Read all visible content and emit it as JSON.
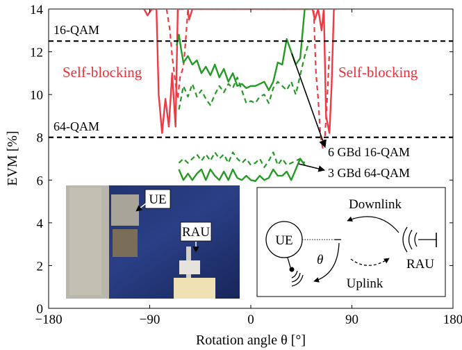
{
  "colors": {
    "red": "#ee3a44",
    "green": "#239a23",
    "threshold": "#000000"
  },
  "chart_data": {
    "type": "line",
    "xlabel": "Rotation angle θ [°]",
    "ylabel": "EVM [%]",
    "xlim": [
      -180,
      180
    ],
    "ylim": [
      0,
      14
    ],
    "xticks": [
      -180,
      -90,
      0,
      90,
      180
    ],
    "yticks": [
      0,
      2,
      4,
      6,
      8,
      10,
      12,
      14
    ],
    "xtick_labels": [
      "−180",
      "−90",
      "0",
      "90",
      "180"
    ],
    "grid": false,
    "thresholds": [
      {
        "label": "16-QAM",
        "y": 12.5
      },
      {
        "label": "64-QAM",
        "y": 8
      }
    ],
    "series": [
      {
        "name": "6 GBd 16-QAM",
        "color": "#ee3a44",
        "style": "solid",
        "x": [
          -95,
          -92,
          -88,
          -84,
          -82,
          -79,
          -76,
          -73,
          -70,
          -67,
          -65,
          -60,
          -57,
          -55,
          -52,
          55,
          57,
          60,
          63,
          65,
          67,
          70,
          72,
          74,
          76
        ],
        "y": [
          14,
          13.7,
          14,
          14,
          10,
          8.2,
          9.8,
          8.5,
          11.0,
          8.5,
          14,
          14,
          14.5,
          13.5,
          14,
          14,
          13.5,
          14,
          13,
          14,
          9,
          8.2,
          10.5,
          14,
          14
        ]
      },
      {
        "name": "3 GBd 64-QAM",
        "color": "#ee3a44",
        "style": "dashed",
        "x": [
          -75,
          -72,
          -70,
          -67,
          -65,
          -63,
          -60,
          -58,
          -56,
          56,
          58,
          60,
          62,
          64,
          66,
          68,
          70
        ],
        "y": [
          14,
          13,
          11.8,
          10.5,
          9.8,
          10.8,
          11.3,
          12.5,
          14,
          14,
          11,
          9.8,
          8.1,
          7.5,
          8.0,
          9.8,
          12
        ]
      },
      {
        "name": "6 GBd 16-QAM",
        "color": "#239a23",
        "style": "solid",
        "x": [
          -66,
          -64,
          -62,
          -60,
          -56,
          -52,
          -48,
          -44,
          -40,
          -36,
          -32,
          -28,
          -24,
          -20,
          -16,
          -12,
          -8,
          -4,
          0,
          4,
          8,
          12,
          16,
          20,
          24,
          28,
          32,
          36,
          40,
          44,
          48,
          52
        ],
        "y": [
          12.3,
          12.8,
          12.1,
          11.5,
          11.8,
          11.4,
          11.6,
          11.0,
          11.3,
          10.9,
          11.4,
          10.8,
          11.2,
          10.6,
          11.0,
          10.4,
          10.5,
          10.3,
          10.4,
          10.4,
          10.5,
          10.6,
          10.2,
          10.6,
          11.5,
          11.4,
          12.6,
          12.0,
          11.4,
          11.7,
          14,
          14
        ]
      },
      {
        "name": "3 GBd 64-QAM",
        "color": "#239a23",
        "style": "dashed",
        "x": [
          -64,
          -60,
          -56,
          -52,
          -48,
          -44,
          -40,
          -36,
          -32,
          -28,
          -24,
          -20,
          -16,
          -12,
          -8,
          -4,
          0,
          4,
          8,
          12,
          16,
          20,
          24,
          28,
          32,
          36,
          40,
          44,
          48,
          52
        ],
        "y": [
          9.3,
          10.4,
          9.9,
          10.5,
          9.9,
          10.2,
          9.8,
          9.5,
          10.0,
          10.4,
          10.1,
          10.5,
          10.3,
          10.8,
          10.2,
          9.6,
          9.7,
          9.6,
          9.9,
          10.0,
          9.6,
          10.3,
          10.6,
          10.4,
          10.2,
          10.6,
          10.0,
          10.9,
          11.8,
          12.5
        ]
      },
      {
        "name": "6 GBd 16-QAM (lower)",
        "color": "#239a23",
        "style": "solid",
        "x": [
          -64,
          -60,
          -56,
          -52,
          -48,
          -44,
          -40,
          -36,
          -32,
          -28,
          -24,
          -20,
          -16,
          -12,
          -8,
          -4,
          0,
          4,
          8,
          12,
          16,
          20,
          24,
          28,
          32,
          36,
          40,
          44,
          48
        ],
        "y": [
          6.5,
          6.0,
          6.3,
          6.0,
          6.3,
          6.5,
          6.0,
          6.5,
          6.2,
          6.0,
          6.4,
          6.0,
          6.5,
          6.1,
          6.0,
          6.2,
          6.0,
          5.95,
          6.2,
          6.0,
          6.1,
          6.5,
          6.2,
          6.2,
          6.4,
          6.0,
          6.5,
          7.0,
          6.7
        ]
      },
      {
        "name": "3 GBd 64-QAM (lower)",
        "color": "#239a23",
        "style": "dashed",
        "x": [
          -64,
          -60,
          -56,
          -52,
          -48,
          -44,
          -40,
          -36,
          -32,
          -28,
          -24,
          -20,
          -16,
          -12,
          -8,
          -4,
          0,
          4,
          8,
          12,
          16,
          20,
          24,
          28,
          32,
          36,
          40,
          44,
          48
        ],
        "y": [
          6.8,
          7.0,
          6.8,
          7.0,
          7.2,
          6.9,
          7.2,
          6.9,
          7.3,
          7.0,
          7.2,
          6.8,
          7.3,
          7.0,
          6.8,
          7.0,
          6.7,
          6.8,
          7.0,
          6.6,
          6.9,
          7.3,
          6.7,
          7.0,
          6.7,
          6.8,
          6.9,
          7.0,
          6.8
        ]
      }
    ],
    "annotations": {
      "left_region": "Self-blocking",
      "right_region": "Self-blocking",
      "arrow_16qam": "6 GBd 16-QAM",
      "arrow_64qam": "3 GBd 64-QAM"
    },
    "inset": {
      "photo_labels": [
        "UE",
        "RAU"
      ],
      "diagram": {
        "ue": "UE",
        "rau": "RAU",
        "downlink": "Downlink",
        "uplink": "Uplink",
        "angle": "θ"
      }
    }
  }
}
